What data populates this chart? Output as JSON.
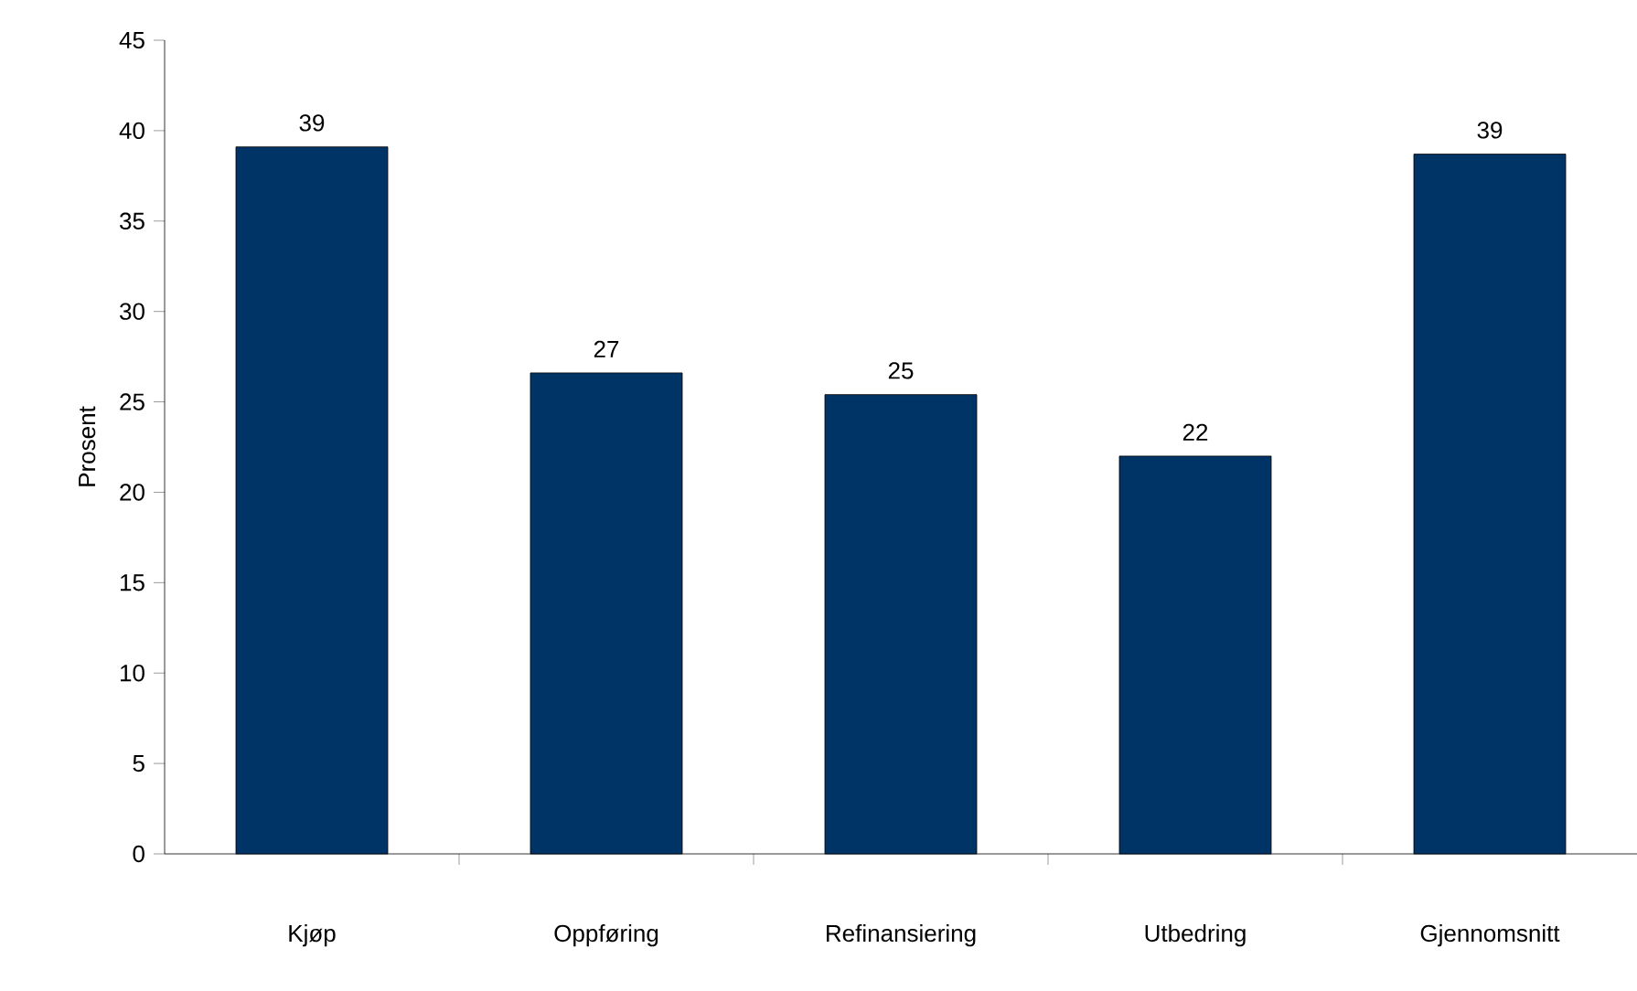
{
  "chart_data": {
    "type": "bar",
    "ylabel": "Prosent",
    "categories": [
      "Kjøp",
      "Oppføring",
      "Refinansiering",
      "Utbedring",
      "Gjennomsnitt"
    ],
    "values": [
      39.1,
      26.6,
      25.4,
      22.0,
      38.7
    ],
    "value_labels": [
      "39",
      "27",
      "25",
      "22",
      "39"
    ],
    "color": "#003366",
    "ylim": [
      0,
      45
    ],
    "yticks": [
      0,
      5,
      10,
      15,
      20,
      25,
      30,
      35,
      40,
      45
    ]
  }
}
